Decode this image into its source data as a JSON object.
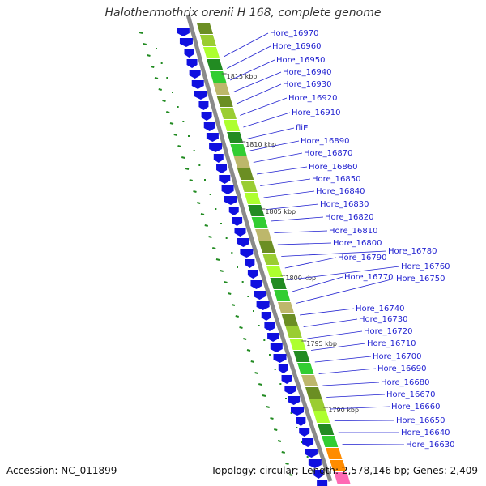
{
  "title": "Halothermothrix orenii H 168, complete genome",
  "accession_text": "Accession: NC_011899",
  "summary_text": "Topology: circular; Length: 2,578,146 bp; Genes: 2,409",
  "colors": {
    "backbone": "#8a8a8a",
    "cds": "#1010e0",
    "gene_label": "#1f1fd0",
    "gc_skew": "#228B22",
    "leader_line": "#1f1fd0"
  },
  "kbp_marks": [
    "1815 kbp",
    "1810 kbp",
    "1805 kbp",
    "1800 kbp",
    "1795 kbp",
    "1790 kbp"
  ],
  "genes": [
    "Hore_16970",
    "Hore_16960",
    "Hore_16950",
    "Hore_16940",
    "Hore_16930",
    "Hore_16920",
    "Hore_16910",
    "fliE",
    "Hore_16890",
    "Hore_16870",
    "Hore_16860",
    "Hore_16850",
    "Hore_16840",
    "Hore_16830",
    "Hore_16820",
    "Hore_16810",
    "Hore_16800",
    "Hore_16780",
    "Hore_16790",
    "Hore_16760",
    "Hore_16770",
    "Hore_16750",
    "Hore_16740",
    "Hore_16730",
    "Hore_16720",
    "Hore_16710",
    "Hore_16700",
    "Hore_16690",
    "Hore_16680",
    "Hore_16670",
    "Hore_16660",
    "Hore_16650",
    "Hore_16640",
    "Hore_16630"
  ]
}
